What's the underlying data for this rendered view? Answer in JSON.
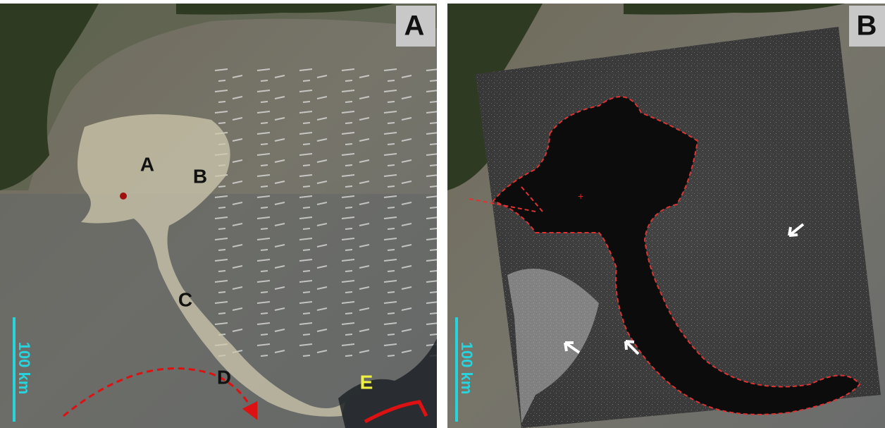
{
  "panels": [
    {
      "label": "A",
      "annotations": [
        "A",
        "B",
        "C",
        "D",
        "E"
      ],
      "scale_bar": "100 km"
    },
    {
      "label": "B",
      "scale_bar": "100 km"
    }
  ]
}
